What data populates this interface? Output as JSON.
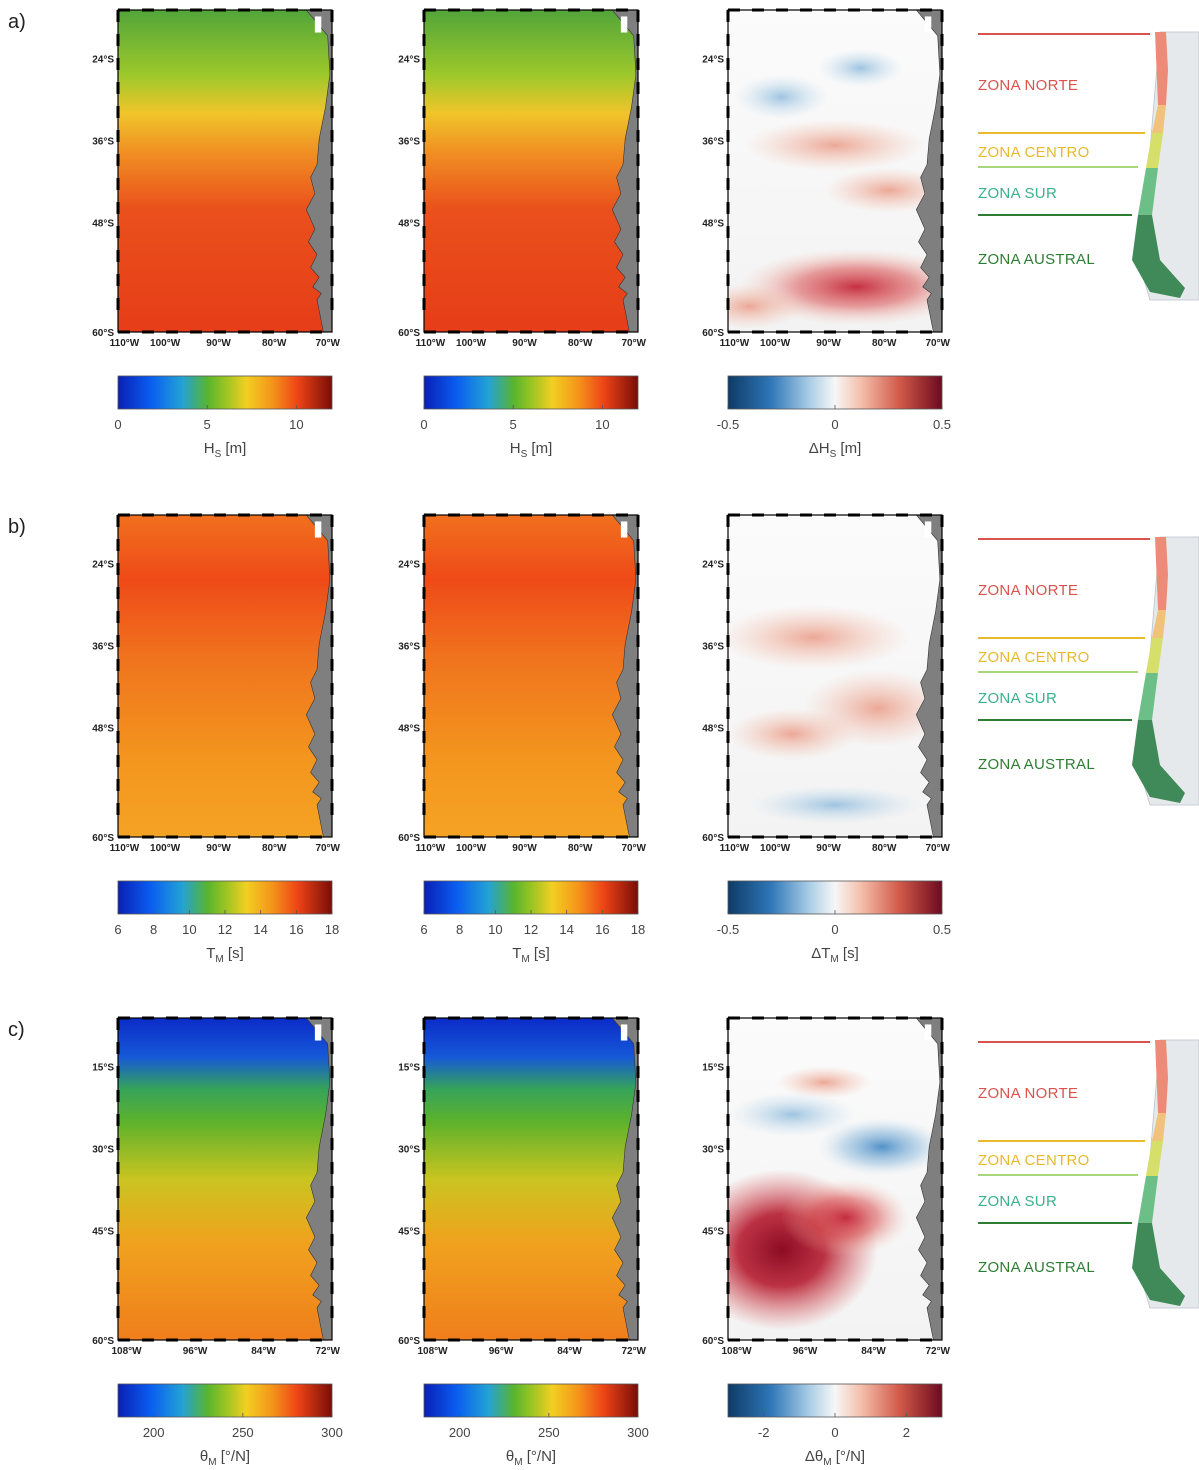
{
  "rows": [
    {
      "label": "a)",
      "lat_ticks": [
        "24°S",
        "36°S",
        "48°S",
        "60°S"
      ],
      "lon_ticks": [
        "110°W",
        "100°W",
        "90°W",
        "80°W",
        "70°W"
      ],
      "maps": [
        {
          "field": "hs",
          "colormap": "jet",
          "colorbar": {
            "min": 0,
            "max": 12,
            "ticks": [
              "0",
              "5",
              "10"
            ],
            "tick_values": [
              0,
              5,
              10
            ],
            "label": "H",
            "sub": "S",
            "unit": " [m]"
          }
        },
        {
          "field": "hs",
          "colormap": "jet",
          "colorbar": {
            "min": 0,
            "max": 12,
            "ticks": [
              "0",
              "5",
              "10"
            ],
            "tick_values": [
              0,
              5,
              10
            ],
            "label": "H",
            "sub": "S",
            "unit": " [m]"
          }
        },
        {
          "field": "dhs",
          "colormap": "rdbu",
          "colorbar": {
            "min": -0.5,
            "max": 0.5,
            "ticks": [
              "-0.5",
              "0",
              "0.5"
            ],
            "tick_values": [
              -0.5,
              0,
              0.5
            ],
            "label": "ΔH",
            "sub": "S",
            "unit": " [m]"
          }
        }
      ]
    },
    {
      "label": "b)",
      "lat_ticks": [
        "24°S",
        "36°S",
        "48°S",
        "60°S"
      ],
      "lon_ticks": [
        "110°W",
        "100°W",
        "90°W",
        "80°W",
        "70°W"
      ],
      "maps": [
        {
          "field": "tm",
          "colormap": "jet",
          "colorbar": {
            "min": 6,
            "max": 18,
            "ticks": [
              "6",
              "8",
              "10",
              "12",
              "14",
              "16",
              "18"
            ],
            "tick_values": [
              6,
              8,
              10,
              12,
              14,
              16,
              18
            ],
            "label": "T",
            "sub": "M",
            "unit": " [s]"
          }
        },
        {
          "field": "tm",
          "colormap": "jet",
          "colorbar": {
            "min": 6,
            "max": 18,
            "ticks": [
              "6",
              "8",
              "10",
              "12",
              "14",
              "16",
              "18"
            ],
            "tick_values": [
              6,
              8,
              10,
              12,
              14,
              16,
              18
            ],
            "label": "T",
            "sub": "M",
            "unit": " [s]"
          }
        },
        {
          "field": "dtm",
          "colormap": "rdbu",
          "colorbar": {
            "min": -0.5,
            "max": 0.5,
            "ticks": [
              "-0.5",
              "0",
              "0.5"
            ],
            "tick_values": [
              -0.5,
              0,
              0.5
            ],
            "label": "ΔT",
            "sub": "M",
            "unit": " [s]"
          }
        }
      ]
    },
    {
      "label": "c)",
      "lat_ticks": [
        "15°S",
        "30°S",
        "45°S",
        "60°S"
      ],
      "lon_ticks": [
        "108°W",
        "96°W",
        "84°W",
        "72°W"
      ],
      "maps": [
        {
          "field": "dir",
          "colormap": "jet",
          "colorbar": {
            "min": 180,
            "max": 300,
            "ticks": [
              "200",
              "250",
              "300"
            ],
            "tick_values": [
              200,
              250,
              300
            ],
            "label": "θ",
            "sub": "M",
            "unit": " [°/N]"
          }
        },
        {
          "field": "dir",
          "colormap": "jet",
          "colorbar": {
            "min": 180,
            "max": 300,
            "ticks": [
              "200",
              "250",
              "300"
            ],
            "tick_values": [
              200,
              250,
              300
            ],
            "label": "θ",
            "sub": "M",
            "unit": " [°/N]"
          }
        },
        {
          "field": "ddir",
          "colormap": "rdbu",
          "colorbar": {
            "min": -3,
            "max": 3,
            "ticks": [
              "-2",
              "0",
              "2"
            ],
            "tick_values": [
              -2,
              0,
              2
            ],
            "label": "Δθ",
            "sub": "M",
            "unit": " [°/N]"
          }
        }
      ]
    }
  ],
  "zones": [
    {
      "name": "ZONA NORTE",
      "color": "#d9534f"
    },
    {
      "name": "ZONA CENTRO",
      "color": "#e8b92c"
    },
    {
      "name": "ZONA SUR",
      "color": "#3bb08a"
    },
    {
      "name": "ZONA AUSTRAL",
      "color": "#2e7d32"
    }
  ],
  "chart_data": {
    "type": "heatmap",
    "panels": [
      {
        "row": "a)",
        "maps": [
          "H_S",
          "H_S",
          "ΔH_S"
        ],
        "units": "m",
        "colorbar_ranges": [
          [
            0,
            12
          ],
          [
            0,
            12
          ],
          [
            -0.5,
            0.5
          ]
        ]
      },
      {
        "row": "b)",
        "maps": [
          "T_M",
          "T_M",
          "ΔT_M"
        ],
        "units": "s",
        "colorbar_ranges": [
          [
            6,
            18
          ],
          [
            6,
            18
          ],
          [
            -0.5,
            0.5
          ]
        ]
      },
      {
        "row": "c)",
        "maps": [
          "θ_M",
          "θ_M",
          "Δθ_M"
        ],
        "units": "°/N",
        "colorbar_ranges": [
          [
            180,
            300
          ],
          [
            180,
            300
          ],
          [
            -3,
            3
          ]
        ]
      }
    ]
  }
}
